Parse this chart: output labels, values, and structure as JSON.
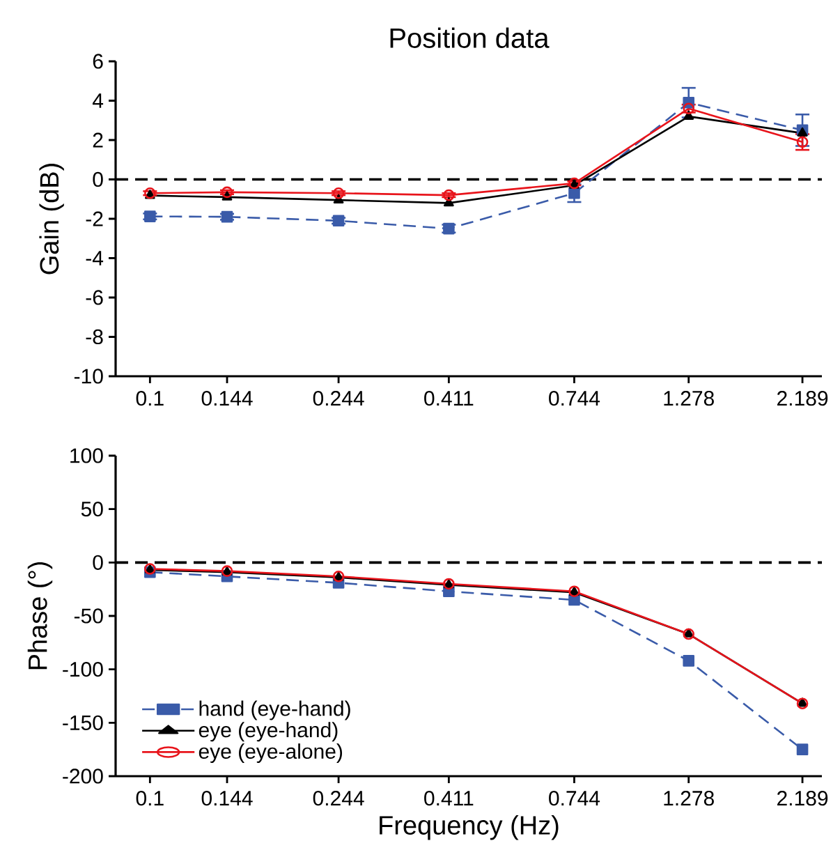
{
  "chart_data": [
    {
      "type": "line",
      "title": "Position data",
      "ylabel": "Gain (dB)",
      "log": "x",
      "x": [
        0.1,
        0.144,
        0.244,
        0.411,
        0.744,
        1.278,
        2.189
      ],
      "xlim": [
        0.085,
        2.4
      ],
      "xticks": [
        0.1,
        0.144,
        0.244,
        0.411,
        0.744,
        1.278,
        2.189
      ],
      "ylim": [
        -10,
        6
      ],
      "yticks": [
        -10,
        -8,
        -6,
        -4,
        -2,
        0,
        2,
        4,
        6
      ],
      "ref_lines": [
        {
          "axis": "y",
          "value": 0,
          "line_style": "dashed",
          "color": "#000000"
        }
      ],
      "series": [
        {
          "color": "#3a5ba9",
          "marker": "square",
          "line_style": "dashed",
          "values": [
            -1.88,
            -1.9,
            -2.1,
            -2.5,
            -0.7,
            3.9,
            2.5
          ],
          "errors": [
            0.15,
            0.15,
            0.15,
            0.2,
            0.45,
            0.75,
            0.8
          ]
        },
        {
          "color": "#000000",
          "marker": "triangle",
          "line_style": "solid",
          "values": [
            -0.82,
            -0.9,
            -1.05,
            -1.2,
            -0.3,
            3.2,
            2.35
          ]
        },
        {
          "color": "#e8141b",
          "marker": "circle",
          "line_style": "solid",
          "values": [
            -0.7,
            -0.65,
            -0.7,
            -0.8,
            -0.2,
            3.6,
            1.9
          ],
          "errors": [
            0.1,
            0.1,
            0.1,
            0.1,
            0.1,
            0.2,
            0.4
          ]
        }
      ],
      "legend": false
    },
    {
      "type": "line",
      "xlabel": "Frequency (Hz)",
      "ylabel": "Phase (°)",
      "log": "x",
      "x": [
        0.1,
        0.144,
        0.244,
        0.411,
        0.744,
        1.278,
        2.189
      ],
      "xlim": [
        0.085,
        2.4
      ],
      "xticks": [
        0.1,
        0.144,
        0.244,
        0.411,
        0.744,
        1.278,
        2.189
      ],
      "ylim": [
        -200,
        100
      ],
      "yticks": [
        -200,
        -150,
        -100,
        -50,
        0,
        50,
        100
      ],
      "ref_lines": [
        {
          "axis": "y",
          "value": 0,
          "line_style": "dashed",
          "color": "#000000"
        }
      ],
      "series": [
        {
          "name": "hand (eye-hand)",
          "color": "#3a5ba9",
          "marker": "square",
          "line_style": "dashed",
          "values": [
            -9,
            -13,
            -19,
            -27,
            -35,
            -92,
            -175
          ]
        },
        {
          "name": "eye (eye-hand)",
          "color": "#000000",
          "marker": "triangle",
          "line_style": "solid",
          "values": [
            -7,
            -9,
            -14,
            -21,
            -28,
            -67,
            -132
          ]
        },
        {
          "name": "eye (eye-alone)",
          "color": "#e8141b",
          "marker": "circle",
          "line_style": "solid",
          "values": [
            -6,
            -8,
            -13,
            -20,
            -27,
            -67,
            -132
          ]
        }
      ],
      "legend": "bottom left"
    }
  ]
}
